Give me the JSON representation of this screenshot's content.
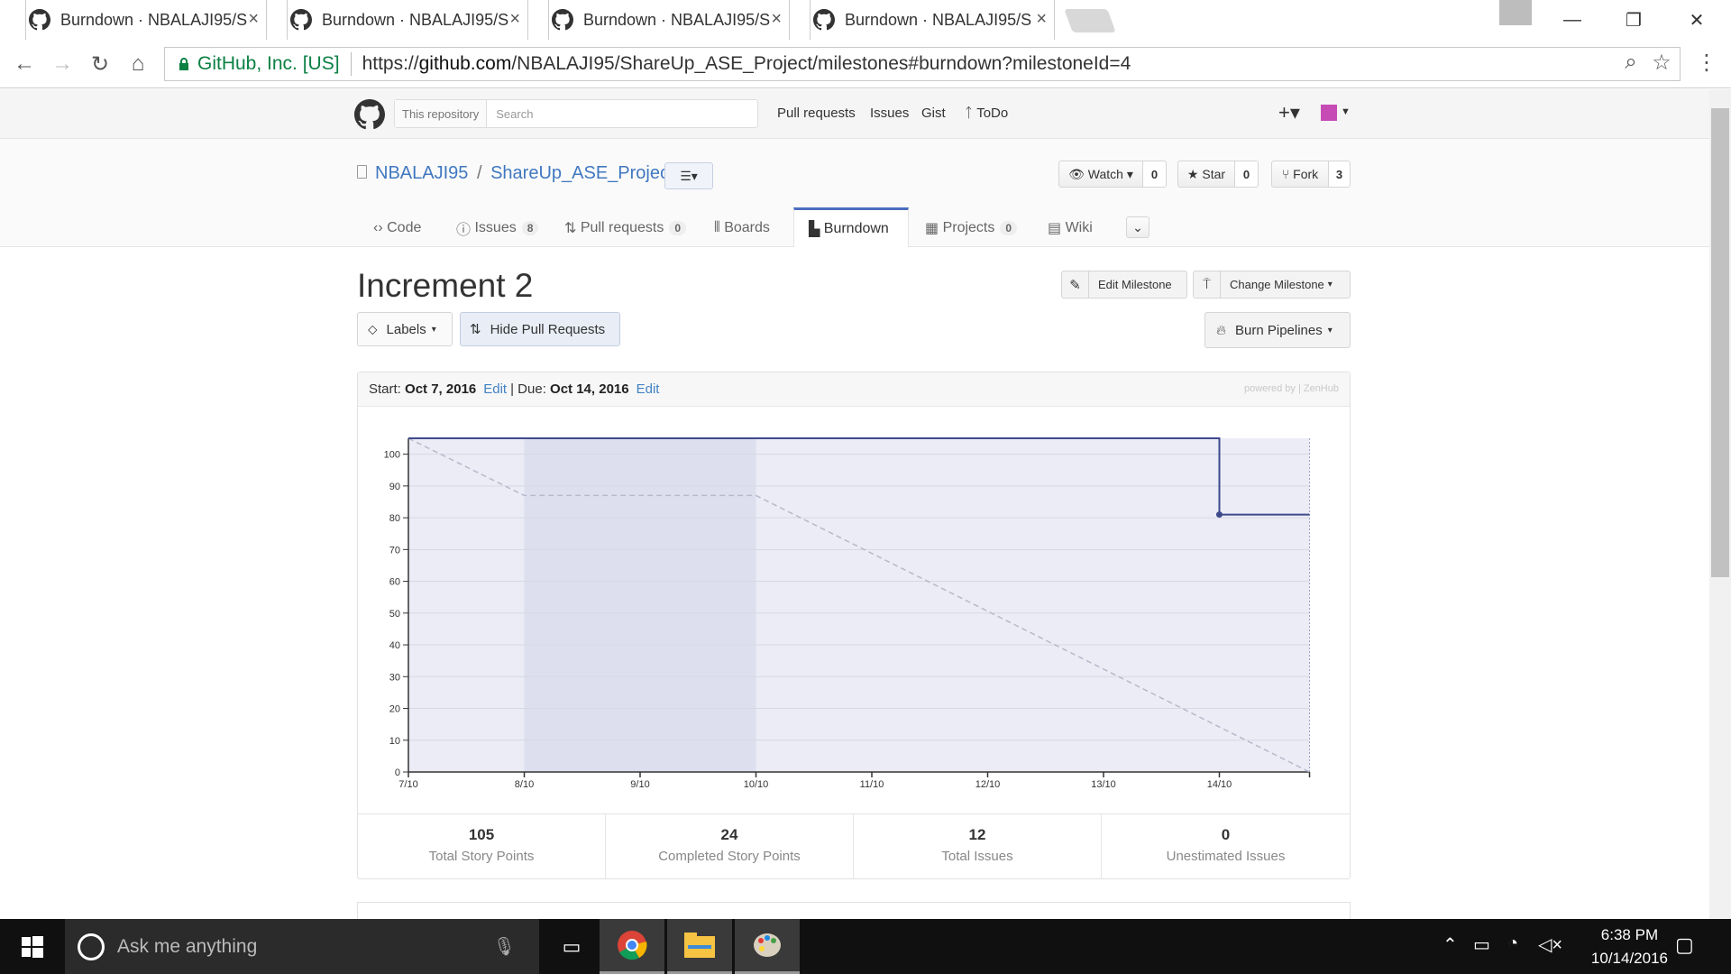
{
  "browser": {
    "tabs": [
      {
        "title": "Burndown · NBALAJI95/S",
        "active": false
      },
      {
        "title": "Burndown · NBALAJI95/S",
        "active": false
      },
      {
        "title": "Burndown · NBALAJI95/S",
        "active": false
      },
      {
        "title": "Burndown · NBALAJI95/S",
        "active": true
      }
    ],
    "security_label": "GitHub, Inc. [US]",
    "url_prefix": "https://",
    "url_host": "github.com",
    "url_path": "/NBALAJI95/ShareUp_ASE_Project/milestones#burndown?milestoneId=4"
  },
  "github_header": {
    "scope_label": "This repository",
    "search_placeholder": "Search",
    "nav": [
      "Pull requests",
      "Issues",
      "Gist",
      "ToDo"
    ]
  },
  "repo": {
    "owner": "NBALAJI95",
    "separator": "/",
    "name": "ShareUp_ASE_Project",
    "watch_label": "Watch",
    "watch_count": "0",
    "star_label": "Star",
    "star_count": "0",
    "fork_label": "Fork",
    "fork_count": "3",
    "tabs": [
      {
        "label": "Code",
        "count": ""
      },
      {
        "label": "Issues",
        "count": "8"
      },
      {
        "label": "Pull requests",
        "count": "0"
      },
      {
        "label": "Boards",
        "count": ""
      },
      {
        "label": "Burndown",
        "count": "",
        "selected": true
      },
      {
        "label": "Projects",
        "count": "0"
      },
      {
        "label": "Wiki",
        "count": ""
      }
    ]
  },
  "milestone": {
    "title": "Increment 2",
    "edit_button": "Edit Milestone",
    "change_button": "Change Milestone",
    "labels_button": "Labels",
    "hide_pr_button": "Hide Pull Requests",
    "burn_button": "Burn Pipelines",
    "start_label": "Start:",
    "start_date": "Oct 7, 2016",
    "edit_link": "Edit",
    "due_sep": "| Due:",
    "due_date": "Oct 14, 2016",
    "powered_by": "powered by | ZenHub"
  },
  "stats": [
    {
      "value": "105",
      "label": "Total Story Points"
    },
    {
      "value": "24",
      "label": "Completed Story Points"
    },
    {
      "value": "12",
      "label": "Total Issues"
    },
    {
      "value": "0",
      "label": "Unestimated Issues"
    }
  ],
  "chart_data": {
    "type": "line",
    "title": "",
    "xlabel": "",
    "ylabel": "",
    "x": [
      "7/10",
      "8/10",
      "9/10",
      "10/10",
      "11/10",
      "12/10",
      "13/10",
      "14/10"
    ],
    "ylim": [
      0,
      105
    ],
    "yticks": [
      0,
      10,
      20,
      30,
      40,
      50,
      60,
      70,
      80,
      90,
      100
    ],
    "weekend_shade": [
      "8/10",
      "10/10"
    ],
    "series": [
      {
        "style": "dashed",
        "color": "#b8b8cc",
        "points": [
          [
            "7/10",
            105
          ],
          [
            "8/10",
            87
          ],
          [
            "10/10",
            87
          ],
          [
            "14/10 end",
            0
          ]
        ]
      },
      {
        "style": "solid",
        "color": "#3d4a8c",
        "points": [
          [
            "7/10",
            105
          ],
          [
            "14/10",
            105
          ],
          [
            "14/10",
            81
          ],
          [
            "14/10 end",
            81
          ]
        ]
      }
    ]
  },
  "taskbar": {
    "search_placeholder": "Ask me anything",
    "time": "6:38 PM",
    "date": "10/14/2016"
  }
}
